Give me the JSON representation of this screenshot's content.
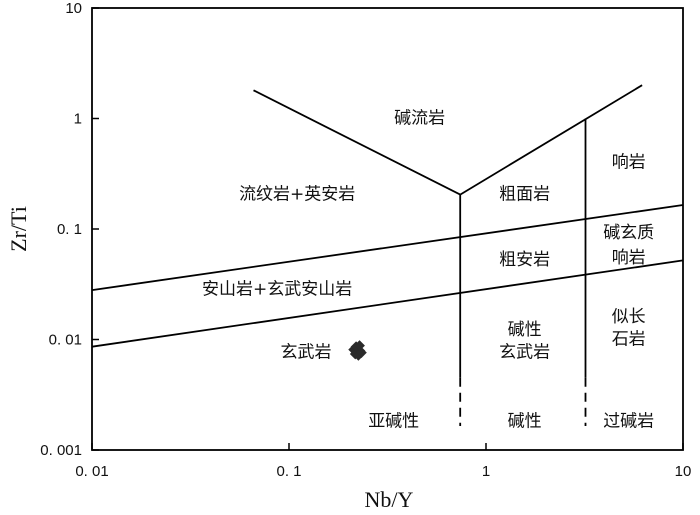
{
  "chart_data": {
    "type": "scatter",
    "title": "",
    "xlabel": "Nb/Y",
    "ylabel": "Zr/Ti",
    "xscale": "log",
    "yscale": "log",
    "xlim": [
      0.01,
      10
    ],
    "ylim": [
      0.001,
      10
    ],
    "x_ticks": [
      {
        "value": 0.01,
        "label": "0. 01"
      },
      {
        "value": 0.1,
        "label": "0. 1"
      },
      {
        "value": 1,
        "label": "1"
      },
      {
        "value": 10,
        "label": "10"
      }
    ],
    "y_ticks": [
      {
        "value": 0.001,
        "label": "0. 001"
      },
      {
        "value": 0.01,
        "label": "0. 01"
      },
      {
        "value": 0.1,
        "label": "0. 1"
      },
      {
        "value": 1,
        "label": "1"
      },
      {
        "value": 10,
        "label": "10"
      }
    ],
    "boundaries": [
      {
        "name": "subalkaline-lower",
        "points": [
          [
            0.01,
            0.0086
          ],
          [
            10,
            0.052
          ]
        ]
      },
      {
        "name": "subalkaline-upper",
        "points": [
          [
            0.01,
            0.028
          ],
          [
            10,
            0.165
          ]
        ]
      },
      {
        "name": "v-left",
        "points": [
          [
            0.066,
            1.8
          ],
          [
            0.74,
            0.205
          ]
        ]
      },
      {
        "name": "v-right",
        "points": [
          [
            0.74,
            0.205
          ],
          [
            6.2,
            2.0
          ]
        ]
      },
      {
        "name": "vertical-1",
        "points": [
          [
            0.74,
            0.205
          ],
          [
            0.74,
            0.0045
          ]
        ]
      },
      {
        "name": "vertical-2",
        "points": [
          [
            3.2,
            1.0
          ],
          [
            3.2,
            0.0045
          ]
        ]
      }
    ],
    "dashed_boundaries": [
      {
        "name": "vertical-1-dash",
        "points": [
          [
            0.74,
            0.0045
          ],
          [
            0.74,
            0.00165
          ]
        ]
      },
      {
        "name": "vertical-2-dash",
        "points": [
          [
            3.2,
            0.0045
          ],
          [
            3.2,
            0.00165
          ]
        ]
      }
    ],
    "regions": [
      {
        "label": "碱流岩",
        "x": 0.46,
        "y": 1.02
      },
      {
        "label": "流纹岩+英安岩",
        "x": 0.11,
        "y": 0.21
      },
      {
        "label": "粗面岩",
        "x": 1.57,
        "y": 0.21
      },
      {
        "label": "响岩",
        "x": 5.3,
        "y": 0.41
      },
      {
        "label": "碱玄质",
        "x": 5.3,
        "y": 0.094
      },
      {
        "label": "响岩",
        "x": 5.3,
        "y": 0.056
      },
      {
        "label": "粗安岩",
        "x": 1.57,
        "y": 0.0535
      },
      {
        "label": "安山岩+玄武安山岩",
        "x": 0.087,
        "y": 0.0288
      },
      {
        "label": "似长",
        "x": 5.3,
        "y": 0.0164
      },
      {
        "label": "石岩",
        "x": 5.3,
        "y": 0.0102
      },
      {
        "label": "碱性",
        "x": 1.57,
        "y": 0.0125
      },
      {
        "label": "玄武岩",
        "x": 1.57,
        "y": 0.0078
      },
      {
        "label": "玄武岩",
        "x": 0.122,
        "y": 0.0078
      },
      {
        "label": "亚碱性",
        "x": 0.34,
        "y": 0.00185
      },
      {
        "label": "碱性",
        "x": 1.57,
        "y": 0.00185
      },
      {
        "label": "过碱岩",
        "x": 5.3,
        "y": 0.00185
      }
    ],
    "series": [
      {
        "color": "#2a2a2a",
        "marker": "diamond",
        "points": [
          [
            0.213,
            0.0081
          ],
          [
            0.221,
            0.0083
          ],
          [
            0.229,
            0.0079
          ],
          [
            0.217,
            0.0074
          ],
          [
            0.225,
            0.0072
          ],
          [
            0.233,
            0.0076
          ],
          [
            0.219,
            0.0086
          ],
          [
            0.228,
            0.0088
          ]
        ]
      }
    ]
  }
}
